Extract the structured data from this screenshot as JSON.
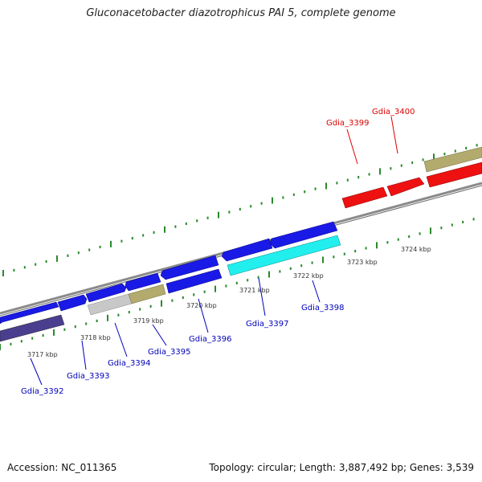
{
  "title": "Gluconacetobacter diazotrophicus PAI 5, complete genome",
  "footer": {
    "accession": "Accession: NC_011365",
    "stats": "Topology: circular; Length: 3,887,492 bp; Genes: 3,539"
  },
  "colors": {
    "forward_gene": "#1a1ae6",
    "reverse_gene": "#1a1ae6",
    "rna_gene": "#4a3f8f",
    "highlight_cyan": "#22eeee",
    "highlight_red": "#ee1111",
    "khaki": "#b3aa6e",
    "grey": "#c8c8c8",
    "backbone": "#8a8a8a",
    "tick_green": "#2a8a2a",
    "label_blue": "#0000bb",
    "label_red": "#dd0000"
  },
  "genes": [
    {
      "label": "Gdia_3392",
      "color": "label_blue"
    },
    {
      "label": "Gdia_3393",
      "color": "label_blue"
    },
    {
      "label": "Gdia_3394",
      "color": "label_blue"
    },
    {
      "label": "Gdia_3395",
      "color": "label_blue"
    },
    {
      "label": "Gdia_3396",
      "color": "label_blue"
    },
    {
      "label": "Gdia_3397",
      "color": "label_blue"
    },
    {
      "label": "Gdia_3398",
      "color": "label_blue"
    },
    {
      "label": "Gdia_3399",
      "color": "label_red"
    },
    {
      "label": "Gdia_3400",
      "color": "label_red"
    }
  ],
  "ticks": [
    "3717 kbp",
    "3718 kbp",
    "3719 kbp",
    "3720 kbp",
    "3721 kbp",
    "3722 kbp",
    "3723 kbp",
    "3724 kbp"
  ]
}
